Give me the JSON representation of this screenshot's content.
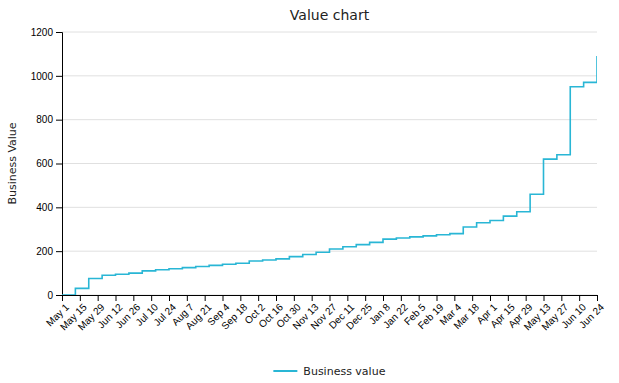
{
  "chart_data": {
    "type": "step",
    "title": "Value chart",
    "ylabel": "Business Value",
    "x": [
      0,
      0.75,
      1.5,
      2.25,
      3,
      3.75,
      4.5,
      5.25,
      6,
      6.75,
      7.5,
      8.25,
      9,
      9.75,
      10.5,
      11.25,
      12,
      12.75,
      13.5,
      14.25,
      15,
      15.75,
      16.5,
      17.25,
      18,
      18.75,
      19.5,
      20.25,
      21,
      21.75,
      22.5,
      23.25,
      24,
      24.75,
      25.5,
      26.25,
      27,
      27.75,
      28.5,
      29.25,
      30
    ],
    "series": [
      {
        "name": "Business value",
        "color": "#29b6d5",
        "values": [
          0,
          30,
          75,
          90,
          95,
          100,
          110,
          115,
          120,
          125,
          130,
          135,
          140,
          145,
          155,
          160,
          165,
          175,
          185,
          195,
          210,
          220,
          230,
          240,
          255,
          260,
          265,
          270,
          275,
          280,
          310,
          330,
          340,
          360,
          380,
          460,
          620,
          640,
          950,
          970,
          1090
        ]
      }
    ],
    "xlim": [
      0,
      30
    ],
    "xticks": [
      {
        "value": 0,
        "label": "May 1"
      },
      {
        "value": 1,
        "label": "May 15"
      },
      {
        "value": 2,
        "label": "May 29"
      },
      {
        "value": 3,
        "label": "Jun 12"
      },
      {
        "value": 4,
        "label": "Jun 26"
      },
      {
        "value": 5,
        "label": "Jul 10"
      },
      {
        "value": 6,
        "label": "Jul 24"
      },
      {
        "value": 7,
        "label": "Aug 7"
      },
      {
        "value": 8,
        "label": "Aug 21"
      },
      {
        "value": 9,
        "label": "Sep 4"
      },
      {
        "value": 10,
        "label": "Sep 18"
      },
      {
        "value": 11,
        "label": "Oct 2"
      },
      {
        "value": 12,
        "label": "Oct 16"
      },
      {
        "value": 13,
        "label": "Oct 30"
      },
      {
        "value": 14,
        "label": "Nov 13"
      },
      {
        "value": 15,
        "label": "Nov 27"
      },
      {
        "value": 16,
        "label": "Dec 11"
      },
      {
        "value": 17,
        "label": "Dec 25"
      },
      {
        "value": 18,
        "label": "Jan 8"
      },
      {
        "value": 19,
        "label": "Jan 22"
      },
      {
        "value": 20,
        "label": "Feb 5"
      },
      {
        "value": 21,
        "label": "Feb 19"
      },
      {
        "value": 22,
        "label": "Mar 4"
      },
      {
        "value": 23,
        "label": "Mar 18"
      },
      {
        "value": 24,
        "label": "Apr 1"
      },
      {
        "value": 25,
        "label": "Apr 15"
      },
      {
        "value": 26,
        "label": "Apr 29"
      },
      {
        "value": 27,
        "label": "May 13"
      },
      {
        "value": 28,
        "label": "May 27"
      },
      {
        "value": 29,
        "label": "Jun 10"
      },
      {
        "value": 30,
        "label": "Jun 24"
      }
    ],
    "ylim": [
      0,
      1200
    ],
    "yticks": [
      0,
      200,
      400,
      600,
      800,
      1000,
      1200
    ],
    "grid": true,
    "legend": "bottom"
  }
}
